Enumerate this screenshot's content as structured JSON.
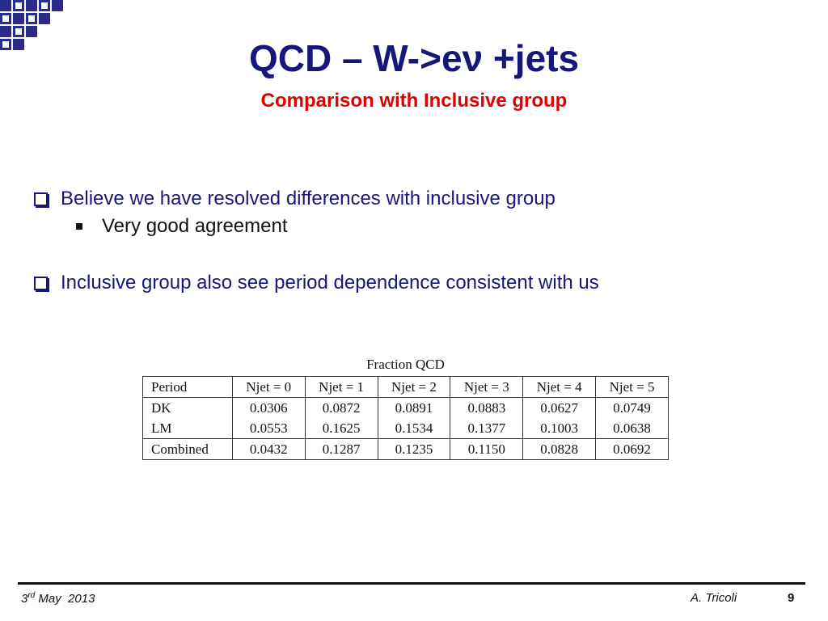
{
  "slide": {
    "title": "QCD – W->eν +jets",
    "subtitle": "Comparison with Inclusive group"
  },
  "bullets": [
    {
      "text": "Believe we have resolved differences with inclusive group",
      "sub": [
        "Very good agreement"
      ]
    },
    {
      "text": "Inclusive group also see period dependence consistent with us"
    }
  ],
  "table": {
    "caption": "Fraction QCD",
    "headers": [
      "Period",
      "Njet = 0",
      "Njet = 1",
      "Njet = 2",
      "Njet = 3",
      "Njet = 4",
      "Njet = 5"
    ],
    "rows": [
      [
        "DK",
        "0.0306",
        "0.0872",
        "0.0891",
        "0.0883",
        "0.0627",
        "0.0749"
      ],
      [
        "LM",
        "0.0553",
        "0.1625",
        "0.1534",
        "0.1377",
        "0.1003",
        "0.0638"
      ],
      [
        "Combined",
        "0.0432",
        "0.1287",
        "0.1235",
        "0.1150",
        "0.0828",
        "0.0692"
      ]
    ]
  },
  "footer": {
    "date_day": "3",
    "date_suffix": "rd",
    "date_rest": " May  2013",
    "author": "A. Tricoli",
    "page_number": "9"
  },
  "colors": {
    "title": "#17177a",
    "subtitle": "#e00000",
    "accent": "#2b2d8c"
  }
}
